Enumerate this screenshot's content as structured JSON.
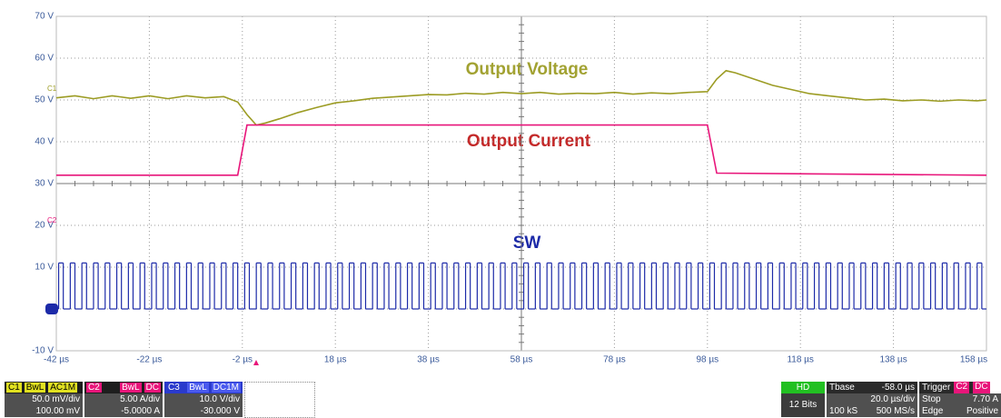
{
  "chart_data": {
    "type": "line",
    "xlim": [
      -42,
      158
    ],
    "ylim": [
      -10,
      70
    ],
    "xticks": [
      {
        "value": -42,
        "label": "-42 µs"
      },
      {
        "value": -22,
        "label": "-22 µs"
      },
      {
        "value": -2,
        "label": "-2 µs"
      },
      {
        "value": 18,
        "label": "18 µs"
      },
      {
        "value": 38,
        "label": "38 µs"
      },
      {
        "value": 58,
        "label": "58 µs"
      },
      {
        "value": 78,
        "label": "78 µs"
      },
      {
        "value": 98,
        "label": "98 µs"
      },
      {
        "value": 118,
        "label": "118 µs"
      },
      {
        "value": 138,
        "label": "138 µs"
      },
      {
        "value": 158,
        "label": "158 µs"
      }
    ],
    "yticks": [
      {
        "value": -10,
        "label": "-10 V"
      },
      0,
      {
        "value": 10,
        "label": "10 V"
      },
      {
        "value": 20,
        "label": "20 V"
      },
      {
        "value": 30,
        "label": "30 V"
      },
      {
        "value": 40,
        "label": "40 V"
      },
      {
        "value": 50,
        "label": "50 V"
      },
      {
        "value": 60,
        "label": "60 V"
      },
      {
        "value": 70,
        "label": "70 V"
      }
    ],
    "grid": true,
    "annotations": [
      "Output Voltage",
      "Output Current",
      "SW"
    ],
    "series": [
      {
        "name": "C1",
        "color": "#9c9c24",
        "step": false,
        "x": [
          -42,
          -38,
          -34,
          -30,
          -26,
          -22,
          -18,
          -14,
          -10,
          -6,
          -3,
          -1,
          1,
          3,
          6,
          10,
          14,
          18,
          22,
          26,
          30,
          34,
          38,
          42,
          46,
          50,
          54,
          58,
          62,
          66,
          70,
          74,
          78,
          82,
          86,
          90,
          94,
          98,
          100,
          102,
          104,
          108,
          112,
          116,
          120,
          124,
          128,
          132,
          136,
          140,
          144,
          148,
          152,
          156,
          158
        ],
        "values": [
          50.5,
          51,
          50.3,
          51,
          50.4,
          51,
          50.3,
          51,
          50.5,
          50.8,
          49.5,
          46.5,
          44,
          44.5,
          45.5,
          47,
          48.2,
          49.3,
          49.8,
          50.4,
          50.7,
          51,
          51.3,
          51.2,
          51.6,
          51.4,
          51.8,
          51.5,
          51.8,
          51.4,
          51.6,
          51.5,
          51.8,
          51.4,
          51.7,
          51.5,
          51.8,
          52,
          55,
          57,
          56.5,
          55,
          53.5,
          52.5,
          51.5,
          51,
          50.5,
          50,
          50.2,
          49.8,
          50,
          49.7,
          50,
          49.8,
          50
        ]
      },
      {
        "name": "C2",
        "color": "#e8157a",
        "step": false,
        "x": [
          -42,
          -3,
          -1,
          98,
          100,
          158
        ],
        "values": [
          32,
          32,
          44,
          44,
          32.5,
          32
        ]
      },
      {
        "name": "C3",
        "color": "#1c2aa8",
        "step": true,
        "x": [
          -42,
          -41.5,
          -40.5,
          -39,
          -38,
          -36.5,
          -35.5,
          -34,
          -33,
          -31.5,
          -30.5,
          -29,
          -28,
          -26.5,
          -25.5,
          -24,
          -23,
          -21.5,
          -20.5,
          -19,
          -18,
          -16.5,
          -15.5,
          -14,
          -13,
          -11.5,
          -10.5,
          -9,
          -8,
          -6.5,
          -5.5,
          -4,
          -3,
          -1.5,
          -0.5,
          1,
          2,
          3.5,
          4.5,
          6,
          7,
          8.5,
          9.5,
          11,
          12,
          13.5,
          14.5,
          16,
          17,
          18.5,
          19.5,
          21,
          22,
          23.5,
          24.5,
          26,
          27,
          28.5,
          29.5,
          31,
          32,
          33.5,
          34.5,
          36,
          37,
          38.5,
          39.5,
          41,
          42,
          43.5,
          44.5,
          46,
          47,
          48.5,
          49.5,
          51,
          52,
          53.5,
          54.5,
          56,
          57,
          58.5,
          59.5,
          61,
          62,
          63.5,
          64.5,
          66,
          67,
          68.5,
          69.5,
          71,
          72,
          73.5,
          74.5,
          76,
          77,
          78.5,
          79.5,
          81,
          82,
          83.5,
          84.5,
          86,
          87,
          88.5,
          89.5,
          91,
          92,
          93.5,
          94.5,
          96,
          97,
          98.5,
          99.5,
          101,
          102,
          103.5,
          104.5,
          106,
          107,
          108.5,
          109.5,
          111,
          112,
          113.5,
          114.5,
          116,
          117,
          118.5,
          119.5,
          121,
          122,
          123.5,
          124.5,
          126,
          127,
          128.5,
          129.5,
          131,
          132,
          133.5,
          134.5,
          136,
          137,
          138.5,
          139.5,
          141,
          142,
          143.5,
          144.5,
          146,
          147,
          148.5,
          149.5,
          151,
          152,
          153.5,
          154.5,
          156,
          157
        ],
        "values": [
          0,
          11,
          0,
          11,
          0,
          11,
          0,
          11,
          0,
          11,
          0,
          11,
          0,
          11,
          0,
          11,
          0,
          11,
          0,
          11,
          0,
          11,
          0,
          11,
          0,
          11,
          0,
          11,
          0,
          11,
          0,
          11,
          0,
          11,
          0,
          11,
          0,
          11,
          0,
          11,
          0,
          11,
          0,
          11,
          0,
          11,
          0,
          11,
          0,
          11,
          0,
          11,
          0,
          11,
          0,
          11,
          0,
          11,
          0,
          11,
          0,
          11,
          0,
          11,
          0,
          11,
          0,
          11,
          0,
          11,
          0,
          11,
          0,
          11,
          0,
          11,
          0,
          11,
          0,
          11,
          0,
          11,
          0,
          11,
          0,
          11,
          0,
          11,
          0,
          11,
          0,
          11,
          0,
          11,
          0,
          11,
          0,
          11,
          0,
          11,
          0,
          11,
          0,
          11,
          0,
          11,
          0,
          11,
          0,
          11,
          0,
          11,
          0,
          11,
          0,
          11,
          0,
          11,
          0,
          11,
          0,
          11,
          0,
          11,
          0,
          11,
          0,
          11,
          0,
          11,
          0,
          11,
          0,
          11,
          0,
          11,
          0,
          11,
          0,
          11,
          0,
          11,
          0,
          11,
          0,
          11,
          0,
          11,
          0,
          11,
          0,
          11,
          0,
          11,
          0,
          11,
          0,
          11,
          0,
          11,
          0
        ]
      }
    ]
  },
  "scope_ui": {
    "channels": [
      {
        "flags": [
          "BwL",
          "AC1M"
        ],
        "scale": "50.0 mV/div",
        "offset": "100.00 mV"
      },
      {
        "flags": [
          "BwL",
          "DC"
        ],
        "scale": "5.00 A/div",
        "offset": "-5.0000 A"
      },
      {
        "flags": [
          "BwL",
          "DC1M"
        ],
        "scale": "10.0 V/div",
        "offset": "-30.000 V"
      }
    ],
    "acquisition": {
      "mode": "HD",
      "bits": "12 Bits"
    },
    "timebase": {
      "label": "Tbase",
      "delay": "-58.0 µs",
      "scale": "20.0 µs/div",
      "samples": "100 kS",
      "rate": "500 MS/s"
    },
    "trigger": {
      "label": "Trigger",
      "source": "C2",
      "coupling": "DC",
      "mode": "Stop",
      "level": "7.70 A",
      "type": "Edge",
      "slope": "Positive"
    }
  }
}
